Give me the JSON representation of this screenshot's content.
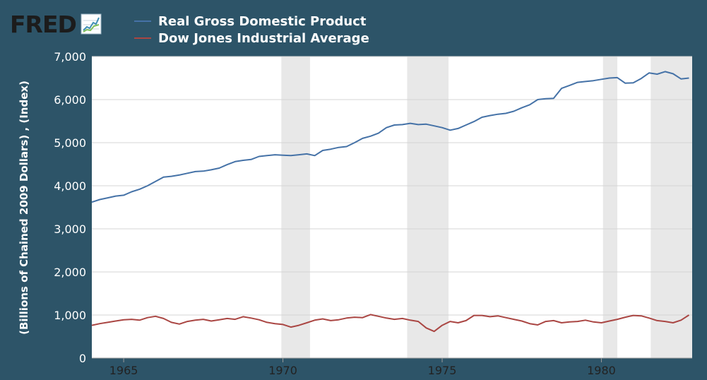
{
  "brand": {
    "logo_text": "FRED"
  },
  "chart_data": {
    "type": "line",
    "ylabel": "(Billions of Chained 2009 Dollars) , (Index)",
    "xlim": [
      1964.0,
      1982.85
    ],
    "ylim": [
      0,
      7000
    ],
    "y_ticks": [
      {
        "label": "0",
        "value": 0
      },
      {
        "label": "1,000",
        "value": 1000
      },
      {
        "label": "2,000",
        "value": 2000
      },
      {
        "label": "3,000",
        "value": 3000
      },
      {
        "label": "4,000",
        "value": 4000
      },
      {
        "label": "5,000",
        "value": 5000
      },
      {
        "label": "6,000",
        "value": 6000
      },
      {
        "label": "7,000",
        "value": 7000
      }
    ],
    "x_ticks": [
      {
        "label": "1965",
        "value": 1965
      },
      {
        "label": "1970",
        "value": 1970
      },
      {
        "label": "1975",
        "value": 1975
      },
      {
        "label": "1980",
        "value": 1980
      }
    ],
    "grid": true,
    "legend_position": "top-left",
    "recessions": [
      [
        1969.95,
        1970.85
      ],
      [
        1973.9,
        1975.2
      ],
      [
        1980.05,
        1980.5
      ],
      [
        1981.55,
        1982.85
      ]
    ],
    "series": [
      {
        "name": "Real Gross Domestic Product",
        "color": "#4572a7",
        "x": [
          1964.0,
          1964.25,
          1964.5,
          1964.75,
          1965.0,
          1965.25,
          1965.5,
          1965.75,
          1966.0,
          1966.25,
          1966.5,
          1966.75,
          1967.0,
          1967.25,
          1967.5,
          1967.75,
          1968.0,
          1968.25,
          1968.5,
          1968.75,
          1969.0,
          1969.25,
          1969.5,
          1969.75,
          1970.0,
          1970.25,
          1970.5,
          1970.75,
          1971.0,
          1971.25,
          1971.5,
          1971.75,
          1972.0,
          1972.25,
          1972.5,
          1972.75,
          1973.0,
          1973.25,
          1973.5,
          1973.75,
          1974.0,
          1974.25,
          1974.5,
          1974.75,
          1975.0,
          1975.25,
          1975.5,
          1975.75,
          1976.0,
          1976.25,
          1976.5,
          1976.75,
          1977.0,
          1977.25,
          1977.5,
          1977.75,
          1978.0,
          1978.25,
          1978.5,
          1978.75,
          1979.0,
          1979.25,
          1979.5,
          1979.75,
          1980.0,
          1980.25,
          1980.5,
          1980.75,
          1981.0,
          1981.25,
          1981.5,
          1981.75,
          1982.0,
          1982.25,
          1982.5,
          1982.75
        ],
        "values": [
          3620,
          3680,
          3720,
          3760,
          3780,
          3860,
          3920,
          4000,
          4100,
          4200,
          4220,
          4250,
          4290,
          4330,
          4340,
          4370,
          4410,
          4490,
          4560,
          4590,
          4610,
          4680,
          4700,
          4720,
          4710,
          4700,
          4720,
          4740,
          4700,
          4820,
          4850,
          4890,
          4910,
          5000,
          5100,
          5150,
          5220,
          5350,
          5410,
          5420,
          5450,
          5420,
          5430,
          5390,
          5350,
          5290,
          5330,
          5410,
          5490,
          5590,
          5630,
          5660,
          5680,
          5730,
          5810,
          5880,
          6000,
          6020,
          6030,
          6260,
          6330,
          6400,
          6420,
          6440,
          6470,
          6500,
          6510,
          6380,
          6390,
          6490,
          6620,
          6590,
          6650,
          6600,
          6480,
          6500
        ]
      },
      {
        "name": "Dow Jones Industrial Average",
        "color": "#aa4643",
        "x": [
          1964.0,
          1964.25,
          1964.5,
          1964.75,
          1965.0,
          1965.25,
          1965.5,
          1965.75,
          1966.0,
          1966.25,
          1966.5,
          1966.75,
          1967.0,
          1967.25,
          1967.5,
          1967.75,
          1968.0,
          1968.25,
          1968.5,
          1968.75,
          1969.0,
          1969.25,
          1969.5,
          1969.75,
          1970.0,
          1970.25,
          1970.5,
          1970.75,
          1971.0,
          1971.25,
          1971.5,
          1971.75,
          1972.0,
          1972.25,
          1972.5,
          1972.75,
          1973.0,
          1973.25,
          1973.5,
          1973.75,
          1974.0,
          1974.25,
          1974.5,
          1974.75,
          1975.0,
          1975.25,
          1975.5,
          1975.75,
          1976.0,
          1976.25,
          1976.5,
          1976.75,
          1977.0,
          1977.25,
          1977.5,
          1977.75,
          1978.0,
          1978.25,
          1978.5,
          1978.75,
          1979.0,
          1979.25,
          1979.5,
          1979.75,
          1980.0,
          1980.25,
          1980.5,
          1980.75,
          1981.0,
          1981.25,
          1981.5,
          1981.75,
          1982.0,
          1982.25,
          1982.5,
          1982.75
        ],
        "values": [
          760,
          800,
          830,
          860,
          890,
          900,
          880,
          940,
          970,
          920,
          830,
          790,
          850,
          880,
          900,
          860,
          890,
          920,
          900,
          960,
          930,
          890,
          830,
          800,
          780,
          720,
          760,
          820,
          880,
          910,
          870,
          890,
          930,
          950,
          940,
          1010,
          970,
          930,
          900,
          920,
          880,
          850,
          700,
          620,
          760,
          850,
          820,
          870,
          990,
          990,
          960,
          980,
          940,
          900,
          860,
          800,
          770,
          850,
          870,
          820,
          840,
          850,
          880,
          840,
          820,
          860,
          900,
          950,
          990,
          980,
          930,
          870,
          850,
          820,
          880,
          1000
        ]
      }
    ]
  }
}
